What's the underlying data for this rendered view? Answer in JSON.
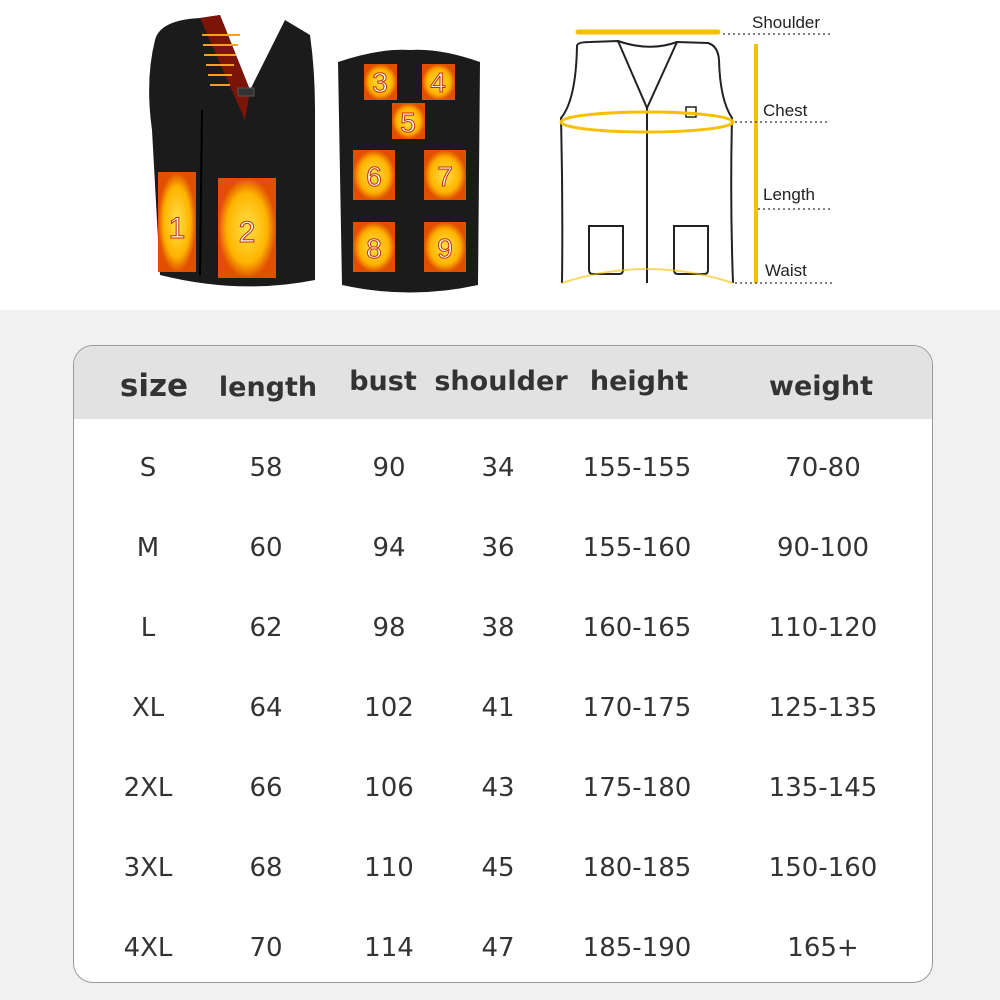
{
  "product_images": {
    "front_panel_numbers": [
      "1",
      "2"
    ],
    "back_panel_numbers": [
      "3",
      "4",
      "5",
      "6",
      "7",
      "8",
      "9"
    ]
  },
  "measurement_diagram": {
    "labels": {
      "shoulder": "Shoulder",
      "chest": "Chest",
      "length": "Length",
      "waist": "Waist"
    },
    "accent_color": "#f5c000"
  },
  "size_table": {
    "headers": [
      "size",
      "length",
      "bust",
      "shoulder",
      "height",
      "weight"
    ],
    "rows": [
      [
        "S",
        "58",
        "90",
        "34",
        "155-155",
        "70-80"
      ],
      [
        "M",
        "60",
        "94",
        "36",
        "155-160",
        "90-100"
      ],
      [
        "L",
        "62",
        "98",
        "38",
        "160-165",
        "110-120"
      ],
      [
        "XL",
        "64",
        "102",
        "41",
        "170-175",
        "125-135"
      ],
      [
        "2XL",
        "66",
        "106",
        "43",
        "175-180",
        "135-145"
      ],
      [
        "3XL",
        "68",
        "110",
        "45",
        "180-185",
        "150-160"
      ],
      [
        "4XL",
        "70",
        "114",
        "47",
        "185-190",
        "165+"
      ]
    ]
  }
}
